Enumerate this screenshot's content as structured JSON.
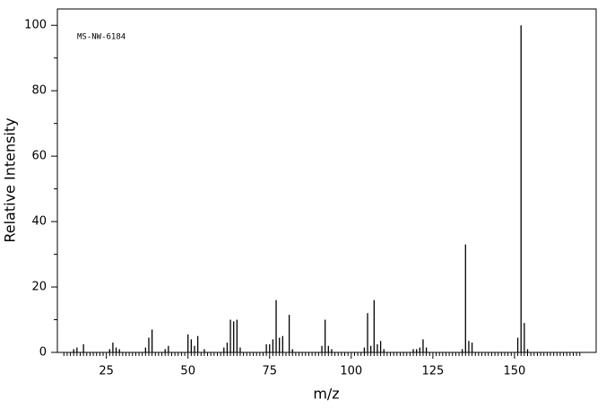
{
  "chart_data": {
    "type": "stem",
    "annotation": "MS-NW-6184",
    "xlabel": "m/z",
    "ylabel": "Relative Intensity",
    "color": "#000000",
    "xlim": [
      10,
      175
    ],
    "ylim": [
      0,
      105
    ],
    "xticks": [
      25,
      50,
      75,
      100,
      125,
      150
    ],
    "yticks": [
      0,
      20,
      40,
      60,
      80,
      100
    ],
    "yminorticks": [
      10,
      30,
      50,
      70,
      90
    ],
    "xminorticks": [
      12,
      13,
      14,
      15,
      16,
      17,
      18,
      19,
      20,
      21,
      22,
      23,
      24,
      26,
      27,
      28,
      29,
      30,
      31,
      32,
      33,
      34,
      35,
      36,
      37,
      38,
      39,
      40,
      41,
      42,
      43,
      44,
      45,
      46,
      47,
      48,
      49,
      51,
      52,
      53,
      54,
      55,
      56,
      57,
      58,
      59,
      60,
      61,
      62,
      63,
      64,
      65,
      66,
      67,
      68,
      69,
      70,
      71,
      72,
      73,
      74,
      76,
      77,
      78,
      79,
      80,
      81,
      82,
      83,
      84,
      85,
      86,
      87,
      88,
      89,
      90,
      91,
      92,
      93,
      94,
      95,
      96,
      97,
      98,
      99,
      101,
      102,
      103,
      104,
      105,
      106,
      107,
      108,
      109,
      110,
      111,
      112,
      113,
      114,
      115,
      116,
      117,
      118,
      119,
      120,
      121,
      122,
      123,
      124,
      126,
      127,
      128,
      129,
      130,
      131,
      132,
      133,
      134,
      135,
      136,
      137,
      138,
      139,
      140,
      141,
      142,
      143,
      144,
      145,
      146,
      147,
      148,
      149,
      151,
      152,
      153,
      154,
      155,
      156,
      157,
      158,
      159,
      160,
      161,
      162,
      163,
      164,
      165,
      166,
      167,
      168,
      169,
      170
    ],
    "x": [
      15,
      16,
      18,
      26,
      27,
      28,
      29,
      37,
      38,
      39,
      43,
      44,
      50,
      51,
      52,
      53,
      55,
      61,
      62,
      63,
      64,
      65,
      66,
      74,
      75,
      76,
      77,
      78,
      79,
      81,
      82,
      91,
      92,
      93,
      94,
      104,
      105,
      106,
      107,
      108,
      109,
      110,
      119,
      120,
      121,
      122,
      123,
      134,
      135,
      136,
      137,
      151,
      152,
      153,
      154
    ],
    "values": [
      1,
      1.5,
      2.5,
      1,
      3,
      1.5,
      1,
      1.5,
      4.5,
      7,
      1,
      2,
      5.5,
      4,
      2,
      5,
      1,
      1.5,
      3,
      10,
      9.5,
      10,
      1.5,
      2.5,
      2.5,
      4,
      16,
      4.5,
      5,
      11.5,
      1,
      2,
      10,
      2,
      1,
      1.5,
      12,
      2,
      16,
      2.5,
      3.5,
      1,
      1,
      1,
      1.5,
      4,
      1.5,
      1,
      33,
      3.5,
      3,
      4.5,
      100,
      9,
      1
    ]
  }
}
